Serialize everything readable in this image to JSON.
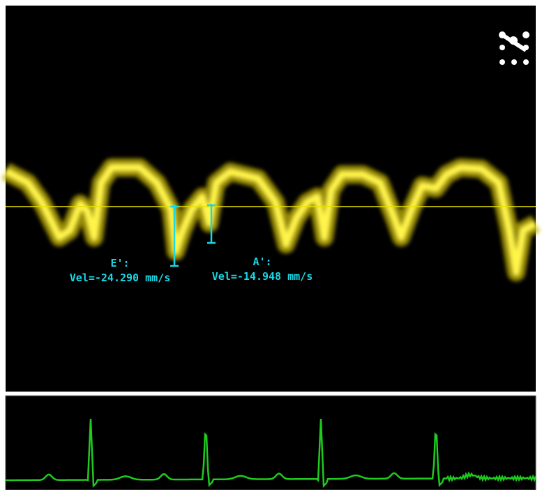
{
  "measurements": [
    {
      "label": "E':",
      "value": "Vel=-24.290 mm/s"
    },
    {
      "label": "A':",
      "value": "Vel=-14.948 mm/s"
    }
  ]
}
